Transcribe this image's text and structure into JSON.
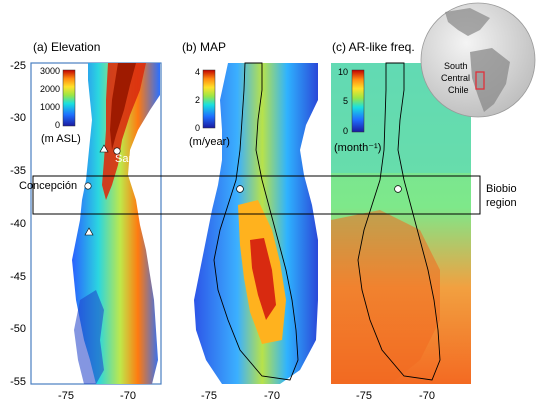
{
  "panels": [
    {
      "id": "elevation",
      "title": "(a) Elevation",
      "unit": "(m ASL)",
      "cbar_ticks": [
        "3000",
        "2000",
        "1000",
        "0"
      ],
      "cbar_range": [
        0,
        3000
      ]
    },
    {
      "id": "map",
      "title": "(b) MAP",
      "unit": "(m/year)",
      "cbar_ticks": [
        "4",
        "2",
        "0"
      ],
      "cbar_range": [
        0,
        4
      ]
    },
    {
      "id": "ar",
      "title": "(c) AR-like freq.",
      "unit": "(month⁻¹)",
      "cbar_ticks": [
        "10",
        "5",
        "0"
      ],
      "cbar_range": [
        0,
        10
      ]
    }
  ],
  "y_ticks": [
    "-25",
    "-30",
    "-35",
    "-40",
    "-45",
    "-50",
    "-55"
  ],
  "x_ticks": [
    "-75",
    "-70"
  ],
  "places": {
    "santiago": "Santiago",
    "concepcion": "Concepción",
    "biobio_line1": "Biobio",
    "biobio_line2": "region"
  },
  "inset": {
    "label_line1": "South",
    "label_line2": "Central",
    "label_line3": "Chile"
  },
  "colors": {
    "ocean_ar": "#3fc8b8",
    "frame": "#4a7fc1",
    "highlight": "#e0303a"
  }
}
